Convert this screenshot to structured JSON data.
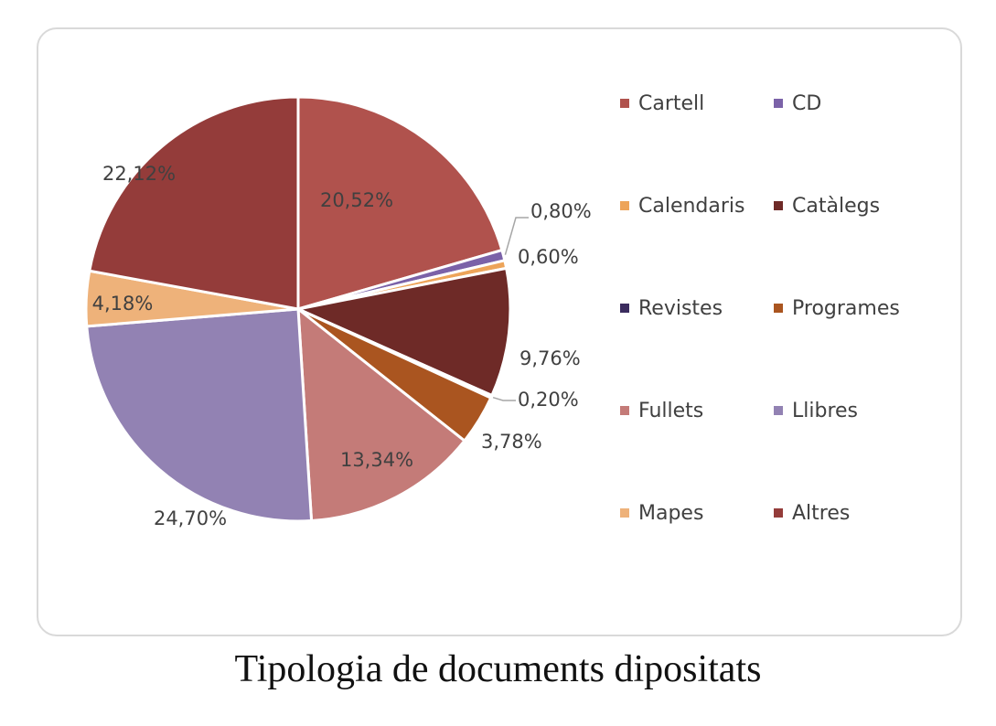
{
  "caption": "Tipologia de documents dipositats",
  "chart_data": {
    "type": "pie",
    "title": "",
    "start_angle_deg": 0,
    "direction": "clockwise",
    "slices": [
      {
        "label": "Cartell",
        "value": 20.52,
        "value_label": "20,52%",
        "color": "#b0524d"
      },
      {
        "label": "CD",
        "value": 0.8,
        "value_label": "0,80%",
        "color": "#7b62a8"
      },
      {
        "label": "Calendaris",
        "value": 0.6,
        "value_label": "0,60%",
        "color": "#eda459"
      },
      {
        "label": "Catàlegs",
        "value": 9.76,
        "value_label": "9,76%",
        "color": "#6e2a27"
      },
      {
        "label": "Revistes",
        "value": 0.2,
        "value_label": "0,20%",
        "color": "#3b2c5e"
      },
      {
        "label": "Programes",
        "value": 3.78,
        "value_label": "3,78%",
        "color": "#aa5520"
      },
      {
        "label": "Fullets",
        "value": 13.34,
        "value_label": "13,34%",
        "color": "#c47b78"
      },
      {
        "label": "Llibres",
        "value": 24.7,
        "value_label": "24,70%",
        "color": "#9282b3"
      },
      {
        "label": "Mapes",
        "value": 4.18,
        "value_label": "4,18%",
        "color": "#eeb27a"
      },
      {
        "label": "Altres",
        "value": 22.12,
        "value_label": "22,12%",
        "color": "#943c3a"
      }
    ],
    "legend_position": "right"
  }
}
